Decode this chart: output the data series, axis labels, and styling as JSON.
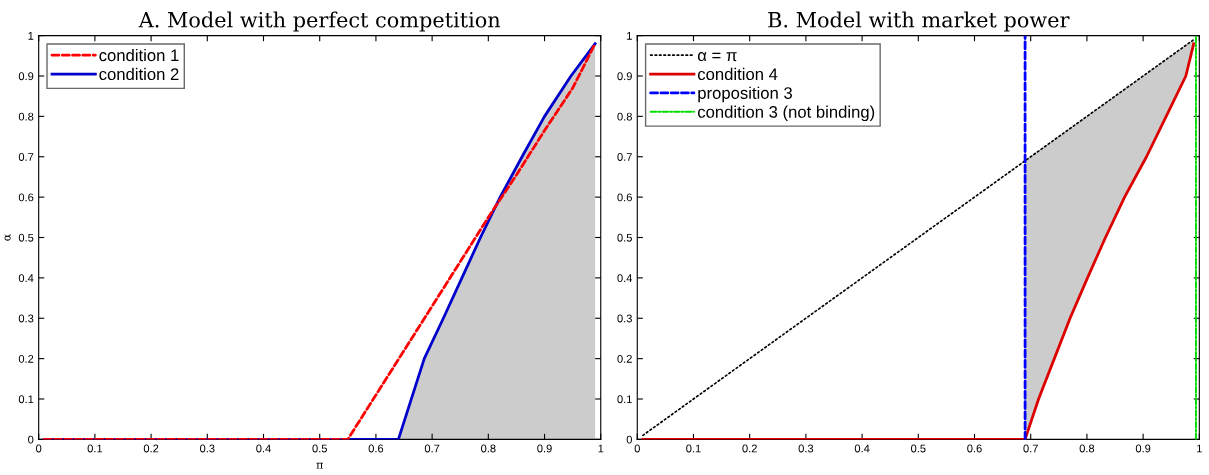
{
  "chart_data": [
    {
      "type": "line",
      "title": "A. Model with perfect competition",
      "xlabel": "π",
      "ylabel": "α",
      "xlim": [
        0,
        1
      ],
      "ylim": [
        0,
        1
      ],
      "xticks": [
        0,
        0.1,
        0.2,
        0.3,
        0.4,
        0.5,
        0.6,
        0.7,
        0.8,
        0.9,
        1
      ],
      "yticks": [
        0,
        0.1,
        0.2,
        0.3,
        0.4,
        0.5,
        0.6,
        0.7,
        0.8,
        0.9,
        1
      ],
      "grid": false,
      "legend": "top left",
      "series": [
        {
          "type": "area",
          "color": "#cccccc",
          "x": [
            0.64,
            0.686,
            0.72,
            0.753,
            0.786,
            0.821,
            0.86,
            0.9,
            0.947,
            0.99
          ],
          "values": [
            0,
            0.2,
            0.3,
            0.4,
            0.5,
            0.6,
            0.7,
            0.8,
            0.9,
            0.98
          ]
        },
        {
          "name": "condition 1",
          "color": "#ff0000",
          "line_style": "dashed",
          "x": [
            0.01,
            0.55,
            0.6,
            0.65,
            0.7,
            0.75,
            0.8,
            0.85,
            0.9,
            0.95,
            0.99
          ],
          "values": [
            0,
            0,
            0.11,
            0.22,
            0.33,
            0.44,
            0.55,
            0.655,
            0.765,
            0.87,
            0.98
          ]
        },
        {
          "name": "condition 2",
          "color": "#0000cc",
          "line_style": "solid",
          "x": [
            0.01,
            0.64,
            0.686,
            0.72,
            0.753,
            0.786,
            0.821,
            0.86,
            0.9,
            0.947,
            0.99
          ],
          "values": [
            0,
            0,
            0.2,
            0.3,
            0.4,
            0.5,
            0.6,
            0.7,
            0.8,
            0.9,
            0.98
          ]
        }
      ]
    },
    {
      "type": "line",
      "title": "B. Model with market power",
      "xlim": [
        0,
        1
      ],
      "ylim": [
        0,
        1
      ],
      "xticks": [
        0,
        0.1,
        0.2,
        0.3,
        0.4,
        0.5,
        0.6,
        0.7,
        0.8,
        0.9,
        1
      ],
      "yticks": [
        0,
        0.1,
        0.2,
        0.3,
        0.4,
        0.5,
        0.6,
        0.7,
        0.8,
        0.9,
        1
      ],
      "grid": false,
      "legend": "top left",
      "series": [
        {
          "name": "α = π",
          "color": "#000000",
          "line_style": "dotted",
          "x": [
            0.01,
            0.69,
            0.714,
            0.742,
            0.77,
            0.801,
            0.833,
            0.867,
            0.906,
            0.941,
            0.976,
            0.99
          ],
          "values": [
            0.01,
            0.69,
            0.714,
            0.742,
            0.77,
            0.801,
            0.833,
            0.867,
            0.906,
            0.941,
            0.976,
            0.99
          ],
          "lower": [
            null,
            0,
            0.1,
            0.2,
            0.3,
            0.4,
            0.5,
            0.6,
            0.7,
            0.8,
            0.9,
            0.98
          ],
          "upper": [
            null,
            0.69,
            0.714,
            0.742,
            0.77,
            0.801,
            0.833,
            0.867,
            0.906,
            0.941,
            0.976,
            0.99
          ]
        },
        {
          "name": "condition 4",
          "color": "#dd0000",
          "line_style": "solid",
          "x": [
            0.01,
            0.69,
            0.714,
            0.742,
            0.77,
            0.801,
            0.833,
            0.867,
            0.906,
            0.941,
            0.976,
            0.99
          ],
          "values": [
            0,
            0,
            0.1,
            0.2,
            0.3,
            0.4,
            0.5,
            0.6,
            0.7,
            0.8,
            0.9,
            0.98
          ]
        },
        {
          "name": "proposition 3",
          "color": "#0000ff",
          "line_style": "dashed",
          "x": [
            0.69,
            0.69
          ],
          "values": [
            0,
            1
          ]
        },
        {
          "name": "condition 3 (not binding)",
          "color": "#00dd00",
          "line_style": "dashdot",
          "x": [
            0.994,
            0.994
          ],
          "values": [
            0,
            1
          ]
        }
      ]
    }
  ]
}
